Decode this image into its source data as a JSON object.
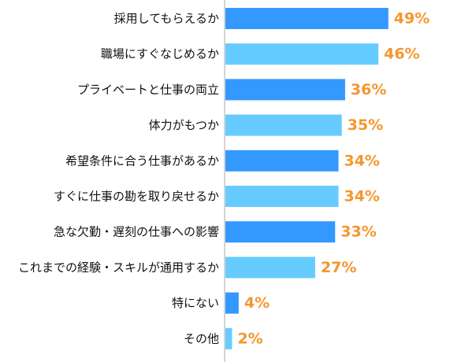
{
  "chart_data": {
    "type": "bar",
    "orientation": "horizontal",
    "title": "",
    "xlabel": "",
    "ylabel": "",
    "xlim": [
      0,
      50
    ],
    "grid": false,
    "legend": "none",
    "categories": [
      "採用してもらえるか",
      "職場にすぐなじめるか",
      "プライベートと仕事の両立",
      "体力がもつか",
      "希望条件に合う仕事があるか",
      "すぐに仕事の勘を取り戻せるか",
      "急な欠勤・遅刻の仕事への影響",
      "これまでの経験・スキルが通用するか",
      "特にない",
      "その他"
    ],
    "values": [
      49,
      46,
      36,
      35,
      34,
      34,
      33,
      27,
      4,
      2
    ],
    "value_labels": [
      "49%",
      "46%",
      "36%",
      "35%",
      "34%",
      "34%",
      "33%",
      "27%",
      "4%",
      "2%"
    ],
    "bar_colors": [
      "#3399FF",
      "#66CCFF"
    ],
    "value_label_color": "#F4962E",
    "axis_color": "#AAAAAA"
  }
}
